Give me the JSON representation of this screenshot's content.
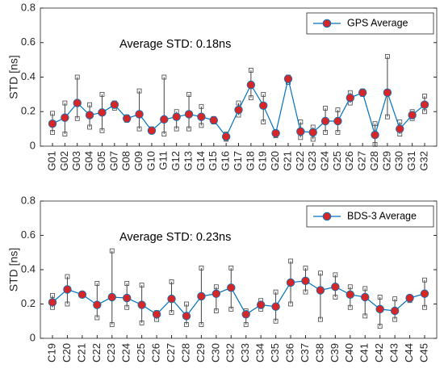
{
  "chart_data": [
    {
      "type": "line",
      "ylabel": "STD [ns]",
      "annotation": "Average STD: 0.18ns",
      "categories": [
        "G01",
        "G02",
        "G03",
        "G04",
        "G05",
        "G07",
        "G08",
        "G09",
        "G10",
        "G11",
        "G12",
        "G13",
        "G14",
        "G15",
        "G16",
        "G17",
        "G18",
        "G19",
        "G20",
        "G21",
        "G22",
        "G23",
        "G24",
        "G25",
        "G26",
        "G27",
        "G28",
        "G29",
        "G30",
        "G31",
        "G32"
      ],
      "series": [
        {
          "name": "GPS Average",
          "color": "#0072bd",
          "marker_color": "#d62728",
          "values": [
            0.13,
            0.165,
            0.25,
            0.18,
            0.195,
            0.24,
            0.16,
            0.185,
            0.09,
            0.155,
            0.17,
            0.185,
            0.17,
            0.15,
            0.055,
            0.21,
            0.355,
            0.235,
            0.075,
            0.39,
            0.085,
            0.08,
            0.145,
            0.145,
            0.28,
            0.31,
            0.065,
            0.31,
            0.1,
            0.18,
            0.24
          ],
          "low": [
            0.08,
            0.07,
            0.16,
            0.11,
            0.09,
            0.22,
            0.15,
            0.1,
            0.09,
            0.07,
            0.1,
            0.1,
            0.12,
            0.14,
            0.04,
            0.18,
            0.28,
            0.14,
            0.06,
            0.37,
            0.05,
            0.04,
            0.08,
            0.08,
            0.25,
            0.3,
            0.01,
            0.17,
            0.07,
            0.16,
            0.2
          ],
          "high": [
            0.19,
            0.25,
            0.4,
            0.24,
            0.3,
            0.25,
            0.17,
            0.32,
            0.1,
            0.4,
            0.2,
            0.3,
            0.23,
            0.16,
            0.07,
            0.25,
            0.44,
            0.3,
            0.08,
            0.4,
            0.14,
            0.11,
            0.22,
            0.21,
            0.31,
            0.32,
            0.13,
            0.52,
            0.14,
            0.2,
            0.29
          ]
        }
      ],
      "ylim": [
        0,
        0.8
      ],
      "yticks": [
        0,
        0.2,
        0.4,
        0.6,
        0.8
      ],
      "legend": "upper right"
    },
    {
      "type": "line",
      "ylabel": "STD [ns]",
      "annotation": "Average STD: 0.23ns",
      "categories": [
        "C19",
        "C20",
        "C21",
        "C22",
        "C23",
        "C24",
        "C25",
        "C26",
        "C27",
        "C28",
        "C29",
        "C30",
        "C32",
        "C33",
        "C34",
        "C35",
        "C36",
        "C37",
        "C38",
        "C39",
        "C40",
        "C41",
        "C42",
        "C43",
        "C44",
        "C45"
      ],
      "series": [
        {
          "name": "BDS-3 Average",
          "color": "#0072bd",
          "marker_color": "#d62728",
          "values": [
            0.21,
            0.285,
            0.255,
            0.195,
            0.24,
            0.235,
            0.195,
            0.14,
            0.23,
            0.13,
            0.245,
            0.26,
            0.295,
            0.14,
            0.195,
            0.185,
            0.325,
            0.335,
            0.28,
            0.3,
            0.255,
            0.24,
            0.17,
            0.16,
            0.235,
            0.26
          ],
          "low": [
            0.18,
            0.2,
            0.25,
            0.12,
            0.08,
            0.18,
            0.09,
            0.11,
            0.15,
            0.08,
            0.08,
            0.16,
            0.17,
            0.08,
            0.17,
            0.1,
            0.2,
            0.27,
            0.11,
            0.24,
            0.18,
            0.13,
            0.07,
            0.11,
            0.22,
            0.18
          ],
          "high": [
            0.25,
            0.36,
            0.26,
            0.32,
            0.51,
            0.32,
            0.31,
            0.15,
            0.33,
            0.2,
            0.41,
            0.3,
            0.41,
            0.16,
            0.22,
            0.27,
            0.45,
            0.41,
            0.38,
            0.37,
            0.3,
            0.29,
            0.24,
            0.23,
            0.24,
            0.34
          ]
        }
      ],
      "ylim": [
        0,
        0.8
      ],
      "yticks": [
        0,
        0.2,
        0.4,
        0.6,
        0.8
      ],
      "legend": "upper right"
    }
  ]
}
